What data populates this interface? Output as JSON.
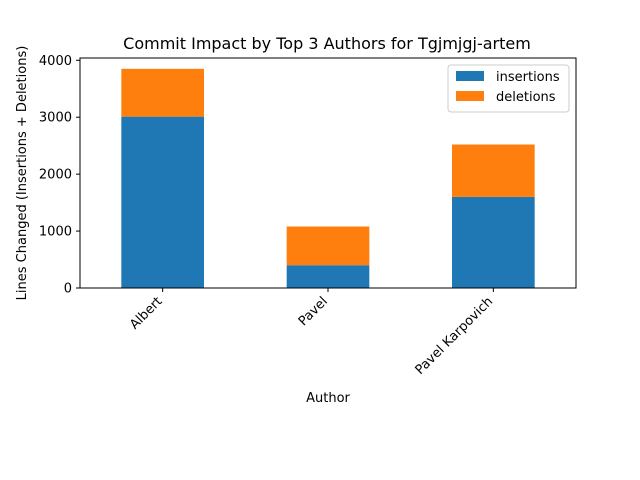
{
  "chart_data": {
    "type": "bar",
    "stacked": true,
    "title": "Commit Impact by Top 3 Authors for Tgjmjgj-artem",
    "xlabel": "Author",
    "ylabel": "Lines Changed (Insertions + Deletions)",
    "categories": [
      "Albert",
      "Pavel",
      "Pavel Karpovich"
    ],
    "series": [
      {
        "name": "insertions",
        "values": [
          3010,
          400,
          1600
        ],
        "color": "#1f77b4"
      },
      {
        "name": "deletions",
        "values": [
          840,
          680,
          920
        ],
        "color": "#ff7f0e"
      }
    ],
    "ylim": [
      0,
      4040
    ],
    "yticks": [
      0,
      1000,
      2000,
      3000,
      4000
    ],
    "ytick_labels": [
      "0",
      "1000",
      "2000",
      "3000",
      "4000"
    ],
    "grid": false,
    "legend_position": "top-right"
  }
}
